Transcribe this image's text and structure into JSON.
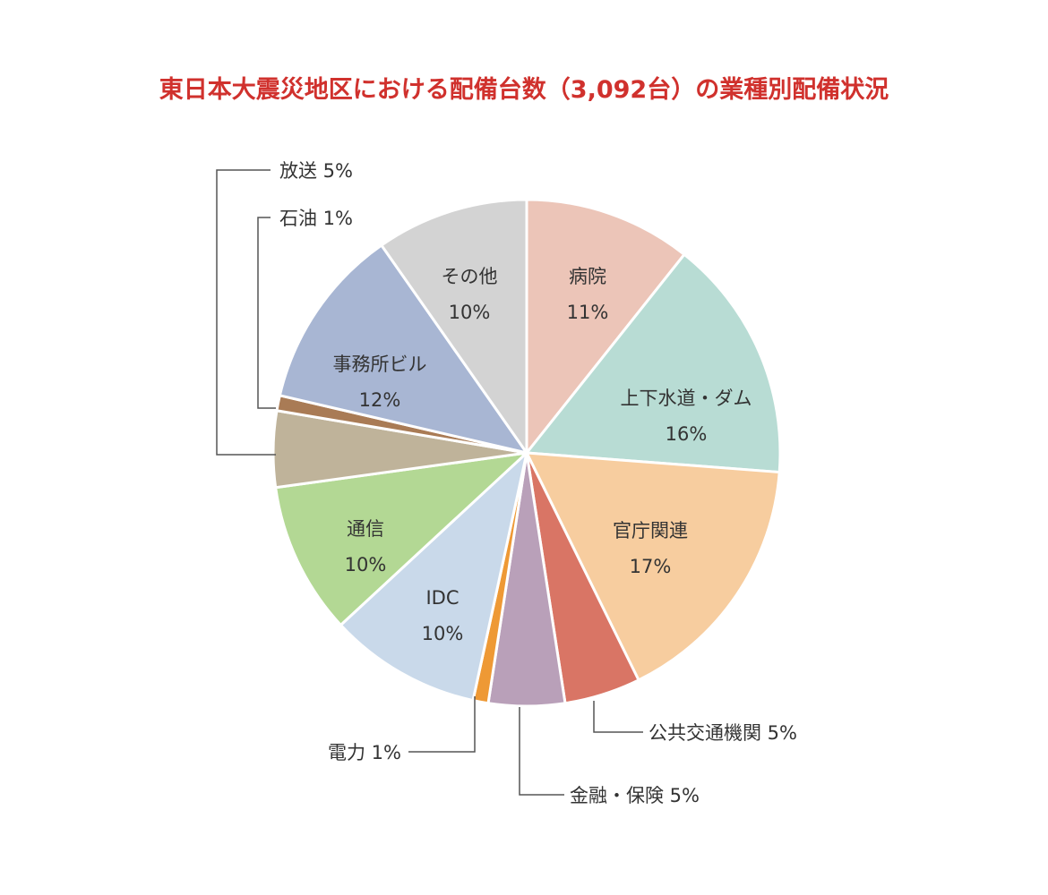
{
  "chart_data": {
    "type": "pie",
    "title": "東日本大震災地区における配備台数（3,092台）の業種別配備状況",
    "slices": [
      {
        "name": "病院",
        "value": 11,
        "label": "11%",
        "color": "#ecc5b8",
        "outside": false
      },
      {
        "name": "上下水道・ダム",
        "value": 16,
        "label": "16%",
        "color": "#b8dcd4",
        "outside": false
      },
      {
        "name": "官庁関連",
        "value": 17,
        "label": "17%",
        "color": "#f7cd9f",
        "outside": false
      },
      {
        "name": "公共交通機関",
        "value": 5,
        "label": "5%",
        "color": "#d97565",
        "outside": true
      },
      {
        "name": "金融・保険",
        "value": 5,
        "label": "5%",
        "color": "#b9a0b9",
        "outside": true
      },
      {
        "name": "電力",
        "value": 1,
        "label": "1%",
        "color": "#ee9935",
        "outside": true
      },
      {
        "name": "IDC",
        "value": 10,
        "label": "10%",
        "color": "#c9d9ea",
        "outside": false
      },
      {
        "name": "通信",
        "value": 10,
        "label": "10%",
        "color": "#b3d894",
        "outside": false
      },
      {
        "name": "放送",
        "value": 5,
        "label": "5%",
        "color": "#bfb39a",
        "outside": true
      },
      {
        "name": "石油",
        "value": 1,
        "label": "1%",
        "color": "#a97b55",
        "outside": true
      },
      {
        "name": "事務所ビル",
        "value": 12,
        "label": "12%",
        "color": "#a8b6d3",
        "outside": false
      },
      {
        "name": "その他",
        "value": 10,
        "label": "10%",
        "color": "#d3d3d3",
        "outside": false
      }
    ]
  }
}
